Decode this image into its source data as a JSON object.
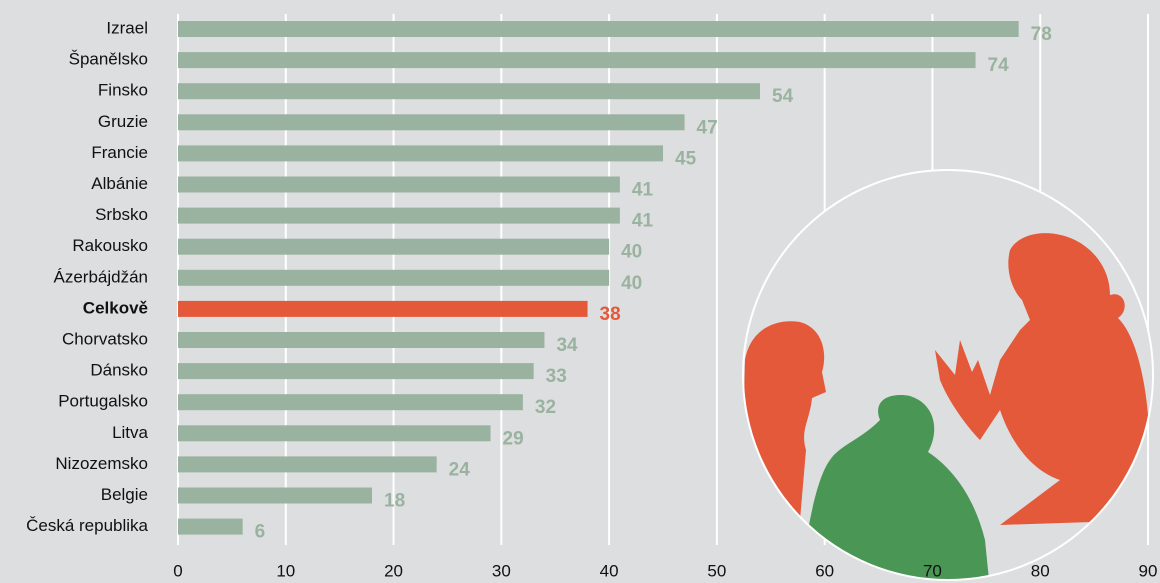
{
  "chart_data": {
    "type": "bar",
    "orientation": "horizontal",
    "categories": [
      "Izrael",
      "Španělsko",
      "Finsko",
      "Gruzie",
      "Francie",
      "Albánie",
      "Srbsko",
      "Rakousko",
      "Ázerbájdžán",
      "Celkově",
      "Chorvatsko",
      "Dánsko",
      "Portugalsko",
      "Litva",
      "Nizozemsko",
      "Belgie",
      "Česká republika"
    ],
    "values": [
      78,
      74,
      54,
      47,
      45,
      41,
      41,
      40,
      40,
      38,
      34,
      33,
      32,
      29,
      24,
      18,
      6
    ],
    "color": "#9ab3a0",
    "colors": [
      "#9ab3a0",
      "#9ab3a0",
      "#9ab3a0",
      "#9ab3a0",
      "#9ab3a0",
      "#9ab3a0",
      "#9ab3a0",
      "#9ab3a0",
      "#9ab3a0",
      "#e4593a",
      "#9ab3a0",
      "#9ab3a0",
      "#9ab3a0",
      "#9ab3a0",
      "#9ab3a0",
      "#9ab3a0",
      "#9ab3a0"
    ],
    "xlim": [
      0,
      90
    ],
    "xticks": [
      0,
      10,
      20,
      30,
      40,
      50,
      60,
      70,
      80,
      90
    ],
    "grid": true
  }
}
